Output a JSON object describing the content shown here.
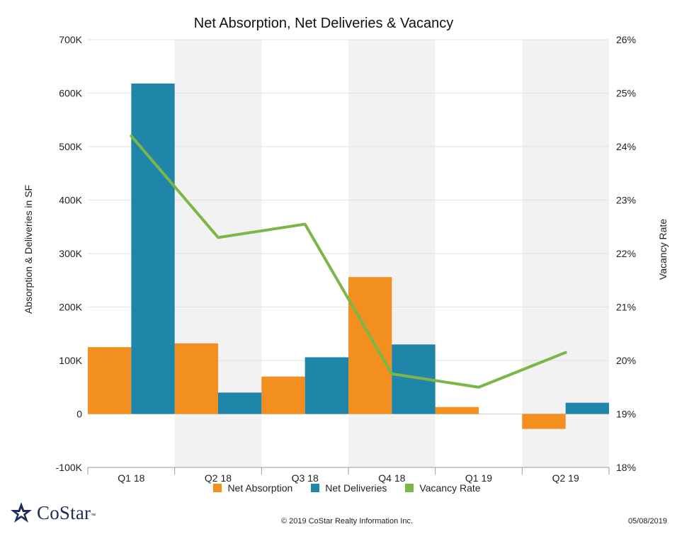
{
  "chart_data": {
    "type": "bar",
    "title": "Net Absorption, Net Deliveries & Vacancy",
    "categories": [
      "Q1 18",
      "Q2 18",
      "Q3 18",
      "Q4 18",
      "Q1 19",
      "Q2 19"
    ],
    "ylabel": "Absorption & Deliveries in SF",
    "y2label": "Vacancy Rate",
    "ylim": [
      -100000,
      700000
    ],
    "y2lim": [
      18,
      26
    ],
    "yticks": [
      "-100K",
      "0",
      "100K",
      "200K",
      "300K",
      "400K",
      "500K",
      "600K",
      "700K"
    ],
    "y2ticks": [
      "18%",
      "19%",
      "20%",
      "21%",
      "22%",
      "23%",
      "24%",
      "25%",
      "26%"
    ],
    "series": [
      {
        "name": "Net Absorption",
        "type": "bar",
        "axis": "left",
        "color": "#f28f1e",
        "values": [
          125000,
          132000,
          70000,
          256000,
          13000,
          -28000
        ]
      },
      {
        "name": "Net Deliveries",
        "type": "bar",
        "axis": "left",
        "color": "#1f86aa",
        "values": [
          618000,
          40000,
          106000,
          130000,
          0,
          21000
        ]
      },
      {
        "name": "Vacancy Rate",
        "type": "line",
        "axis": "right",
        "color": "#7ab648",
        "values": [
          24.2,
          22.3,
          22.55,
          19.75,
          19.5,
          20.15
        ]
      }
    ],
    "legend": "bottom",
    "grid": true
  },
  "footer": {
    "logo_text": "CoStar",
    "logo_tm": "™",
    "copyright": "© 2019 CoStar Realty Information Inc.",
    "date": "05/08/2019"
  }
}
